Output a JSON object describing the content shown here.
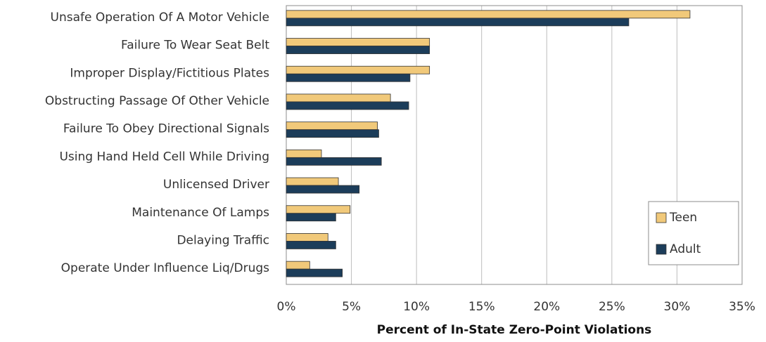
{
  "chart_data": {
    "type": "bar",
    "orientation": "horizontal",
    "x_label": "Percent of In-State Zero-Point Violations",
    "categories": [
      "Unsafe Operation Of A Motor Vehicle",
      "Failure To Wear Seat Belt",
      "Improper Display/Fictitious Plates",
      "Obstructing Passage Of Other Vehicle",
      "Failure To Obey Directional Signals",
      "Using Hand Held Cell While Driving",
      "Unlicensed Driver",
      "Maintenance Of Lamps",
      "Delaying Traffic",
      "Operate Under Influence Liq/Drugs"
    ],
    "series": [
      {
        "name": "Teen",
        "color": "#f1c97a",
        "values": [
          31.0,
          11.0,
          11.0,
          8.0,
          7.0,
          2.7,
          4.0,
          4.9,
          3.2,
          1.8
        ]
      },
      {
        "name": "Adult",
        "color": "#1c3d5a",
        "values": [
          26.3,
          11.0,
          9.5,
          9.4,
          7.1,
          7.3,
          5.6,
          3.8,
          3.8,
          4.3
        ]
      }
    ],
    "xlim": [
      0,
      35
    ],
    "xticks": [
      {
        "value": 0,
        "label": "0%"
      },
      {
        "value": 5,
        "label": "5%"
      },
      {
        "value": 10,
        "label": "10%"
      },
      {
        "value": 15,
        "label": "15%"
      },
      {
        "value": 20,
        "label": "20%"
      },
      {
        "value": 25,
        "label": "25%"
      },
      {
        "value": 30,
        "label": "30%"
      },
      {
        "value": 35,
        "label": "35%"
      }
    ],
    "grid": true,
    "legend": "bottom-right"
  }
}
